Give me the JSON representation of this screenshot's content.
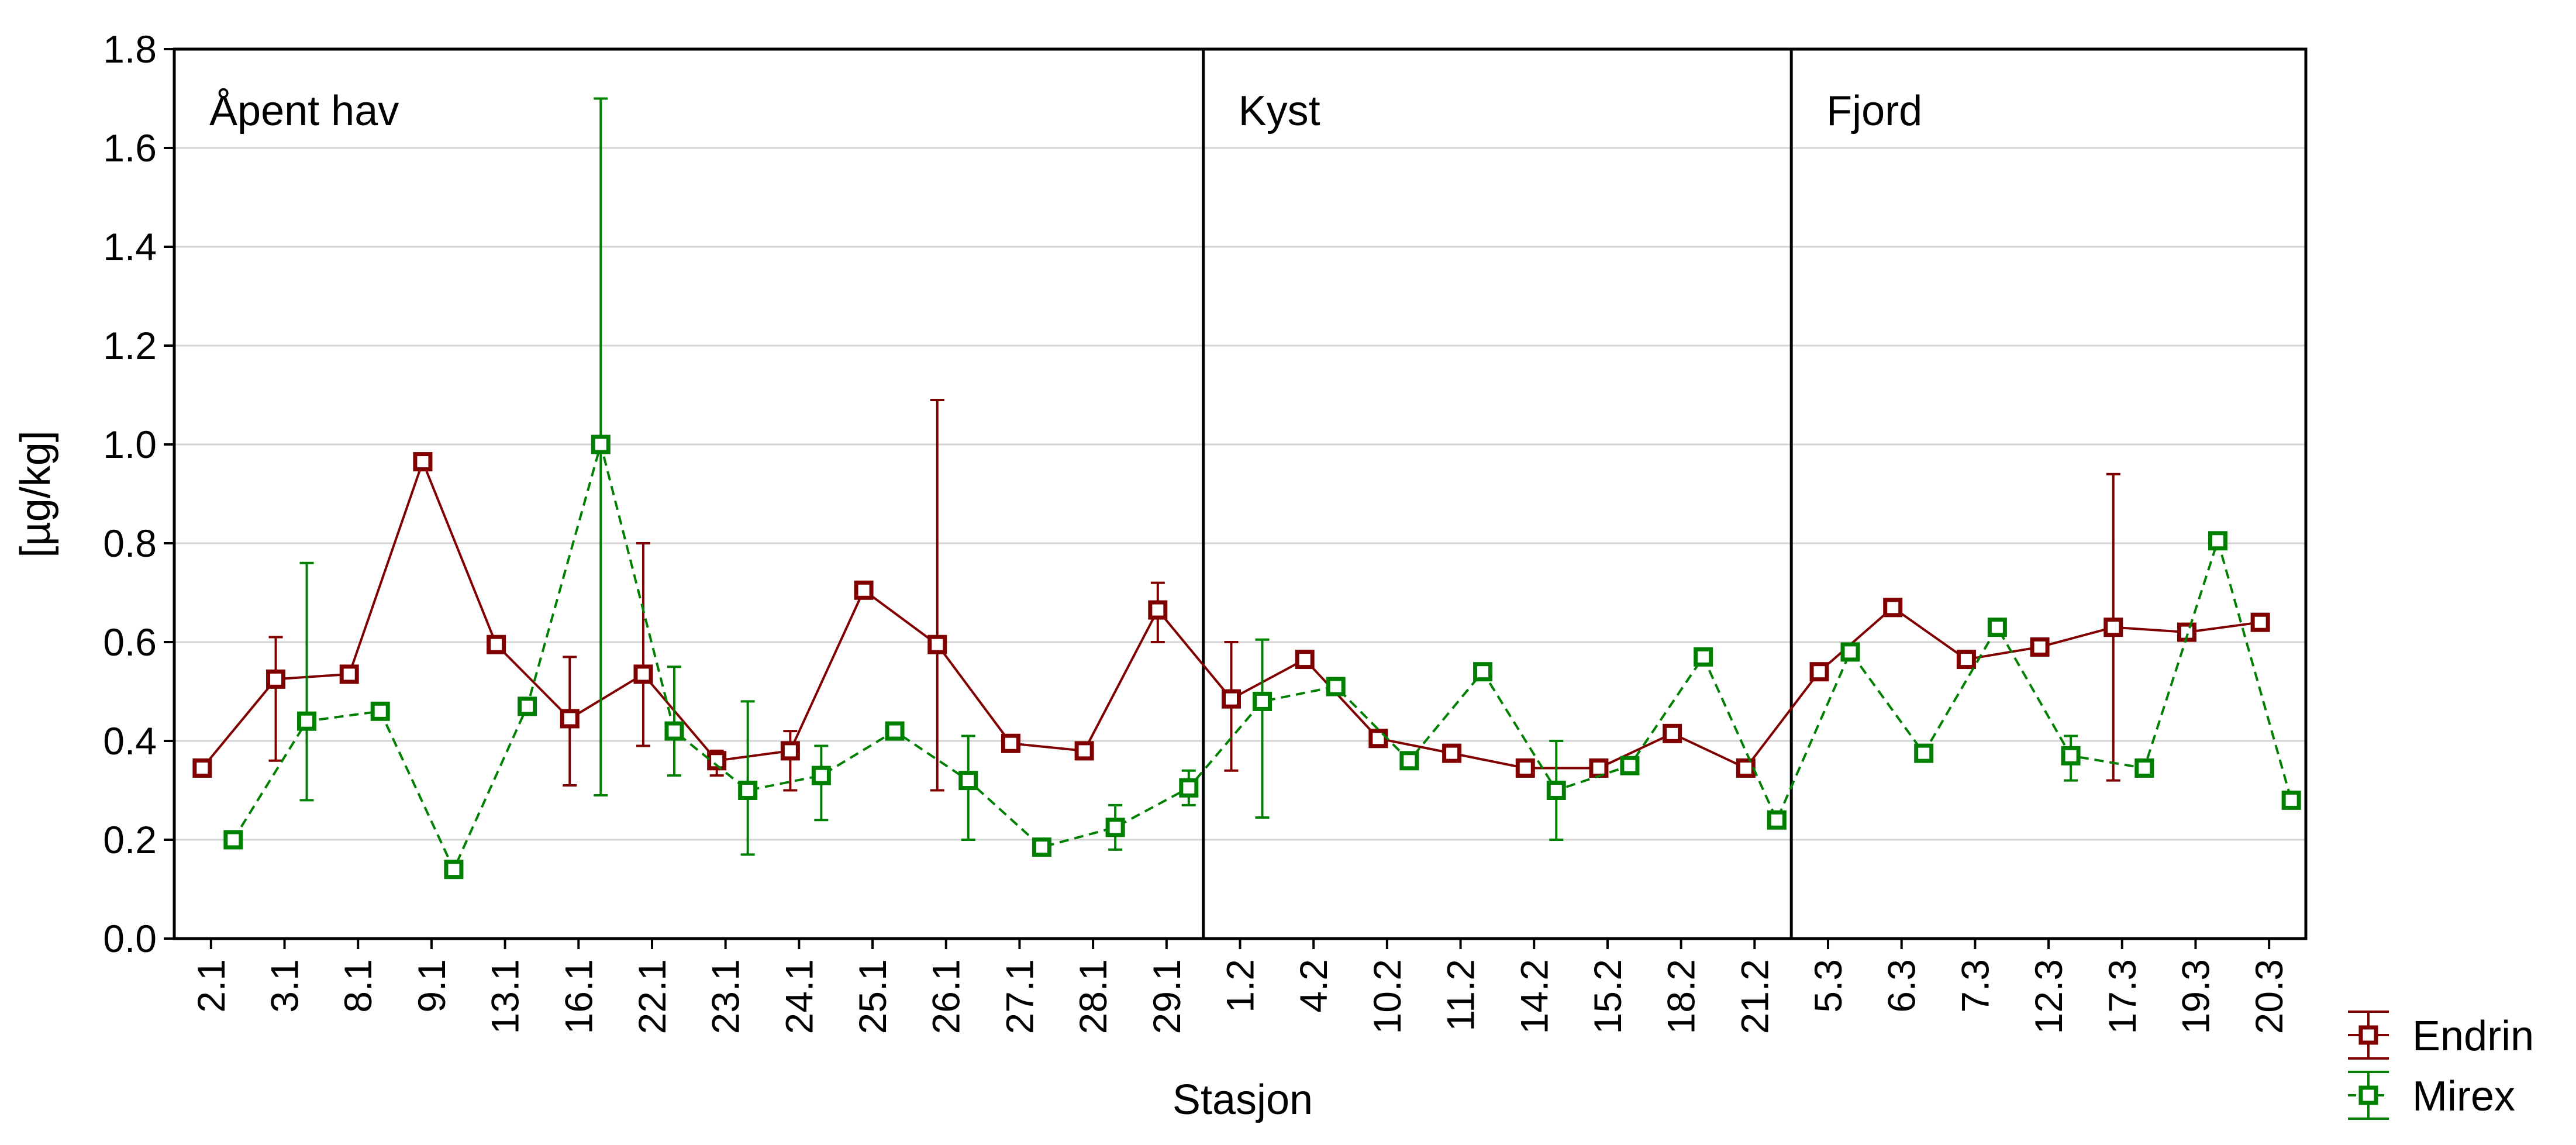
{
  "chart_data": {
    "type": "line",
    "title": "",
    "xlabel": "Stasjon",
    "ylabel": "[µg/kg]",
    "ylim": [
      0,
      1.8
    ],
    "yticks": [
      "0.0",
      "0.2",
      "0.4",
      "0.6",
      "0.8",
      "1.0",
      "1.2",
      "1.4",
      "1.6",
      "1.8"
    ],
    "grid": "horizontal",
    "legend_position": "bottom-right outside",
    "categories": [
      "2.1",
      "3.1",
      "8.1",
      "9.1",
      "13.1",
      "16.1",
      "22.1",
      "23.1",
      "24.1",
      "25.1",
      "26.1",
      "27.1",
      "28.1",
      "29.1",
      "1.2",
      "4.2",
      "10.2",
      "11.2",
      "14.2",
      "15.2",
      "18.2",
      "21.2",
      "5.3",
      "6.3",
      "7.3",
      "12.3",
      "17.3",
      "19.3",
      "20.3"
    ],
    "regions": [
      {
        "label": "Åpent hav",
        "start": 0,
        "end": 13
      },
      {
        "label": "Kyst",
        "start": 14,
        "end": 21
      },
      {
        "label": "Fjord",
        "start": 22,
        "end": 28
      }
    ],
    "series": [
      {
        "name": "Endrin",
        "color": "#800000",
        "line_style": "solid",
        "values": [
          0.345,
          0.525,
          0.535,
          0.965,
          0.595,
          0.445,
          0.535,
          0.36,
          0.38,
          0.705,
          0.595,
          0.395,
          0.38,
          0.665,
          0.485,
          0.565,
          0.405,
          0.375,
          0.345,
          0.345,
          0.415,
          0.345,
          0.54,
          0.67,
          0.565,
          0.59,
          0.63,
          0.62,
          0.64
        ],
        "error_low": [
          null,
          0.36,
          null,
          null,
          null,
          0.31,
          0.39,
          0.33,
          0.3,
          null,
          0.3,
          null,
          null,
          0.6,
          0.34,
          null,
          null,
          null,
          null,
          null,
          null,
          null,
          null,
          null,
          null,
          null,
          0.32,
          null,
          null
        ],
        "error_high": [
          null,
          0.61,
          null,
          null,
          null,
          0.57,
          0.8,
          0.38,
          0.42,
          null,
          1.09,
          null,
          null,
          0.72,
          0.6,
          null,
          null,
          null,
          null,
          null,
          null,
          null,
          null,
          null,
          null,
          null,
          0.94,
          null,
          null
        ]
      },
      {
        "name": "Mirex",
        "color": "#008000",
        "line_style": "dashed",
        "values": [
          0.2,
          0.44,
          0.46,
          0.14,
          0.47,
          1.0,
          0.42,
          0.3,
          0.33,
          0.42,
          0.32,
          0.185,
          0.225,
          0.305,
          0.48,
          0.51,
          0.36,
          0.54,
          0.3,
          0.35,
          0.57,
          0.24,
          0.58,
          0.375,
          0.63,
          0.37,
          0.345,
          0.805,
          0.28
        ],
        "error_low": [
          null,
          0.28,
          null,
          null,
          null,
          0.29,
          0.33,
          0.17,
          0.24,
          null,
          0.2,
          null,
          0.18,
          0.27,
          0.245,
          null,
          null,
          null,
          0.2,
          null,
          null,
          null,
          null,
          null,
          null,
          0.32,
          null,
          null,
          null
        ],
        "error_high": [
          null,
          0.76,
          null,
          null,
          null,
          1.7,
          0.55,
          0.48,
          0.39,
          null,
          0.41,
          null,
          0.27,
          0.34,
          0.605,
          null,
          null,
          null,
          0.4,
          null,
          null,
          null,
          null,
          null,
          null,
          0.41,
          null,
          null,
          null
        ]
      }
    ]
  }
}
